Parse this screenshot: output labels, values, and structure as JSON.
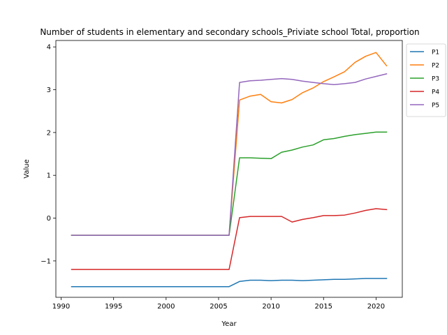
{
  "chart_data": {
    "type": "line",
    "title": "Number of students in elementary and secondary schools_Priviate school Total, proportion",
    "xlabel": "Year",
    "ylabel": "Value",
    "xlim": [
      1989.5,
      2022.5
    ],
    "ylim": [
      -1.85,
      4.15
    ],
    "xticks": [
      1990,
      1995,
      2000,
      2005,
      2010,
      2015,
      2020
    ],
    "yticks": [
      -1,
      0,
      1,
      2,
      3,
      4
    ],
    "legend_position": "outside-top-right",
    "x": [
      1991,
      1992,
      1993,
      1994,
      1995,
      1996,
      1997,
      1998,
      1999,
      2000,
      2001,
      2002,
      2003,
      2004,
      2005,
      2006,
      2007,
      2008,
      2009,
      2010,
      2011,
      2012,
      2013,
      2014,
      2015,
      2016,
      2017,
      2018,
      2019,
      2020,
      2021
    ],
    "series": [
      {
        "name": "P1",
        "color": "#1f77b4",
        "values": [
          -1.6,
          -1.6,
          -1.6,
          -1.6,
          -1.6,
          -1.6,
          -1.6,
          -1.6,
          -1.6,
          -1.6,
          -1.6,
          -1.6,
          -1.6,
          -1.6,
          -1.6,
          -1.6,
          -1.48,
          -1.45,
          -1.45,
          -1.46,
          -1.45,
          -1.45,
          -1.46,
          -1.45,
          -1.44,
          -1.43,
          -1.43,
          -1.42,
          -1.41,
          -1.41,
          -1.41
        ]
      },
      {
        "name": "P2",
        "color": "#ff7f0e",
        "values": [
          -0.4,
          -0.4,
          -0.4,
          -0.4,
          -0.4,
          -0.4,
          -0.4,
          -0.4,
          -0.4,
          -0.4,
          -0.4,
          -0.4,
          -0.4,
          -0.4,
          -0.4,
          -0.4,
          2.76,
          2.85,
          2.89,
          2.72,
          2.69,
          2.77,
          2.93,
          3.04,
          3.19,
          3.3,
          3.42,
          3.64,
          3.78,
          3.87,
          3.56
        ]
      },
      {
        "name": "P3",
        "color": "#2ca02c",
        "values": [
          -0.4,
          -0.4,
          -0.4,
          -0.4,
          -0.4,
          -0.4,
          -0.4,
          -0.4,
          -0.4,
          -0.4,
          -0.4,
          -0.4,
          -0.4,
          -0.4,
          -0.4,
          -0.4,
          1.41,
          1.41,
          1.4,
          1.39,
          1.54,
          1.59,
          1.66,
          1.71,
          1.83,
          1.86,
          1.91,
          1.95,
          1.98,
          2.01,
          2.01
        ]
      },
      {
        "name": "P4",
        "color": "#d62728",
        "values": [
          -1.2,
          -1.2,
          -1.2,
          -1.2,
          -1.2,
          -1.2,
          -1.2,
          -1.2,
          -1.2,
          -1.2,
          -1.2,
          -1.2,
          -1.2,
          -1.2,
          -1.2,
          -1.2,
          0.01,
          0.04,
          0.04,
          0.04,
          0.04,
          -0.09,
          -0.03,
          0.01,
          0.06,
          0.06,
          0.07,
          0.12,
          0.18,
          0.22,
          0.2
        ]
      },
      {
        "name": "P5",
        "color": "#9467bd",
        "values": [
          -0.4,
          -0.4,
          -0.4,
          -0.4,
          -0.4,
          -0.4,
          -0.4,
          -0.4,
          -0.4,
          -0.4,
          -0.4,
          -0.4,
          -0.4,
          -0.4,
          -0.4,
          -0.4,
          3.17,
          3.21,
          3.22,
          3.24,
          3.26,
          3.24,
          3.2,
          3.17,
          3.14,
          3.12,
          3.14,
          3.17,
          3.25,
          3.31,
          3.37
        ]
      }
    ]
  }
}
